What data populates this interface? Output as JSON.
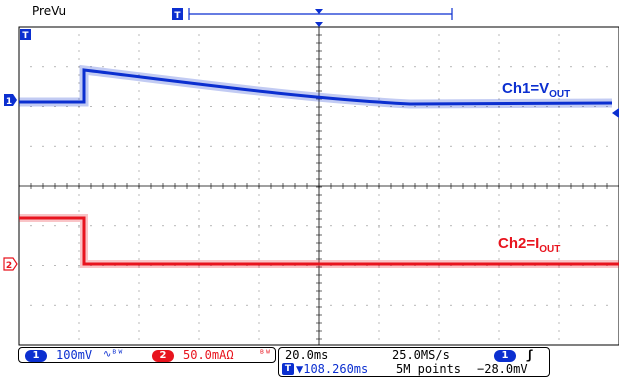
{
  "header": {
    "mode_label": "PreVu",
    "trigger_marker": "T"
  },
  "channels": [
    {
      "id": "1",
      "color": "#0b2fd0",
      "scale": "100mV",
      "coupling_icon": "bandwidth-limit-icon"
    },
    {
      "id": "2",
      "color": "#e8141e",
      "scale": "50.0mAΩ",
      "coupling_icon": "bandwidth-limit-icon"
    }
  ],
  "annotations": {
    "ch1": {
      "prefix": "Ch1=V",
      "subscript": "OUT"
    },
    "ch2": {
      "prefix": "Ch2=I",
      "subscript": "OUT"
    }
  },
  "status": {
    "timebase": "20.0ms",
    "sample_rate": "25.0MS/s",
    "trigger_offset": "▼108.260ms",
    "record_length": "5M points",
    "trigger_source": "1",
    "trigger_slope": "ʃ",
    "trigger_level": "−28.0mV"
  },
  "colors": {
    "ch1": "#0b2fd0",
    "ch2": "#e8141e",
    "grid": "#000000",
    "background": "#ffffff"
  }
}
